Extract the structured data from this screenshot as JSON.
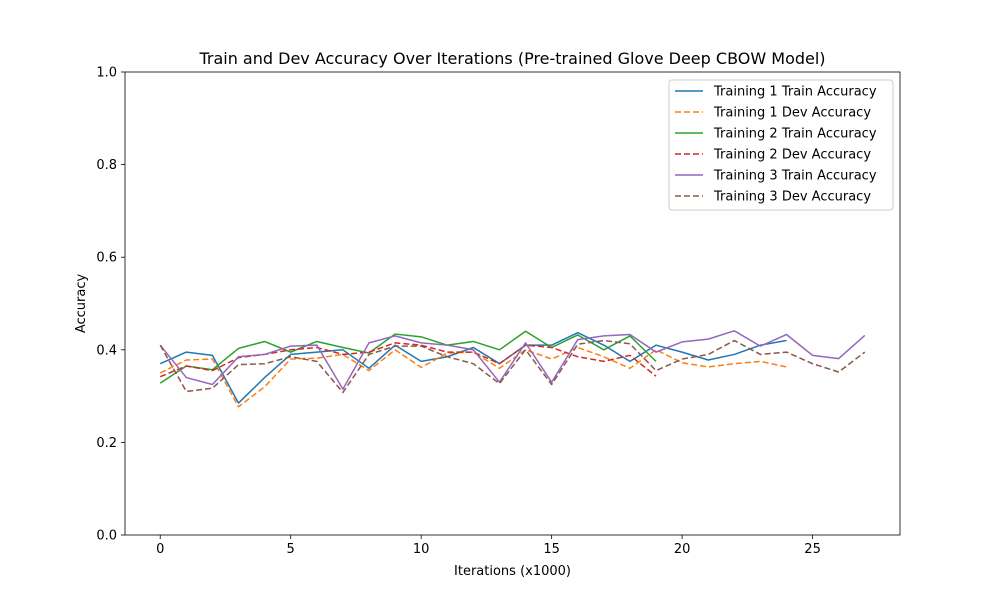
{
  "chart_data": {
    "type": "line",
    "title": "Train and Dev Accuracy Over Iterations (Pre-trained Glove Deep CBOW Model)",
    "xlabel": "Iterations (x1000)",
    "ylabel": "Accuracy",
    "xlim": [
      -1.35,
      28.35
    ],
    "ylim": [
      0.0,
      1.0
    ],
    "xticks": [
      0,
      5,
      10,
      15,
      20,
      25
    ],
    "yticks": [
      0.0,
      0.2,
      0.4,
      0.6,
      0.8,
      1.0
    ],
    "xtick_labels": [
      "0",
      "5",
      "10",
      "15",
      "20",
      "25"
    ],
    "ytick_labels": [
      "0.0",
      "0.2",
      "0.4",
      "0.6",
      "0.8",
      "1.0"
    ],
    "grid": false,
    "legend_position": "top-right",
    "series": [
      {
        "name": "Training 1 Train Accuracy",
        "color": "#1f77b4",
        "style": "solid",
        "x": [
          0,
          1,
          2,
          3,
          4,
          5,
          6,
          7,
          8,
          9,
          10,
          11,
          12,
          13,
          14,
          15,
          16,
          17,
          18,
          19,
          20,
          21,
          22,
          23,
          24
        ],
        "y": [
          0.37,
          0.395,
          0.388,
          0.285,
          0.34,
          0.39,
          0.395,
          0.4,
          0.36,
          0.41,
          0.375,
          0.385,
          0.405,
          0.37,
          0.41,
          0.41,
          0.437,
          0.41,
          0.375,
          0.41,
          0.395,
          0.378,
          0.39,
          0.41,
          0.42
        ]
      },
      {
        "name": "Training 1 Dev Accuracy",
        "color": "#ff7f0e",
        "style": "dashed",
        "x": [
          0,
          1,
          2,
          3,
          4,
          5,
          6,
          7,
          8,
          9,
          10,
          11,
          12,
          13,
          14,
          15,
          16,
          17,
          18,
          19,
          20,
          21,
          22,
          23,
          24
        ],
        "y": [
          0.35,
          0.378,
          0.38,
          0.277,
          0.32,
          0.38,
          0.382,
          0.39,
          0.355,
          0.4,
          0.362,
          0.393,
          0.395,
          0.36,
          0.4,
          0.38,
          0.405,
          0.385,
          0.36,
          0.4,
          0.372,
          0.363,
          0.37,
          0.375,
          0.363
        ]
      },
      {
        "name": "Training 2 Train Accuracy",
        "color": "#2ca02c",
        "style": "solid",
        "x": [
          0,
          1,
          2,
          3,
          4,
          5,
          6,
          7,
          8,
          9,
          10,
          11,
          12,
          13,
          14,
          15,
          16,
          17,
          18,
          19
        ],
        "y": [
          0.328,
          0.365,
          0.357,
          0.403,
          0.418,
          0.395,
          0.418,
          0.405,
          0.393,
          0.434,
          0.428,
          0.41,
          0.418,
          0.4,
          0.44,
          0.405,
          0.432,
          0.4,
          0.43,
          0.375
        ]
      },
      {
        "name": "Training 2 Dev Accuracy",
        "color": "#d62728",
        "style": "dashed",
        "x": [
          0,
          1,
          2,
          3,
          4,
          5,
          6,
          7,
          8,
          9,
          10,
          11,
          12,
          13,
          14,
          15,
          16,
          17,
          18,
          19
        ],
        "y": [
          0.342,
          0.365,
          0.355,
          0.383,
          0.39,
          0.4,
          0.405,
          0.39,
          0.395,
          0.415,
          0.41,
          0.395,
          0.395,
          0.37,
          0.41,
          0.405,
          0.385,
          0.375,
          0.388,
          0.343
        ]
      },
      {
        "name": "Training 3 Train Accuracy",
        "color": "#9467bd",
        "style": "solid",
        "x": [
          0,
          1,
          2,
          3,
          4,
          5,
          6,
          7,
          8,
          9,
          10,
          11,
          12,
          13,
          14,
          15,
          16,
          17,
          18,
          19,
          20,
          21,
          22,
          23,
          24,
          25,
          26,
          27
        ],
        "y": [
          0.41,
          0.34,
          0.325,
          0.385,
          0.39,
          0.408,
          0.41,
          0.315,
          0.415,
          0.43,
          0.415,
          0.41,
          0.4,
          0.33,
          0.415,
          0.33,
          0.422,
          0.43,
          0.433,
          0.395,
          0.417,
          0.423,
          0.441,
          0.408,
          0.433,
          0.388,
          0.381,
          0.431
        ]
      },
      {
        "name": "Training 3 Dev Accuracy",
        "color": "#8c564b",
        "style": "dashed",
        "x": [
          0,
          1,
          2,
          3,
          4,
          5,
          6,
          7,
          8,
          9,
          10,
          11,
          12,
          13,
          14,
          15,
          16,
          17,
          18,
          19,
          20,
          21,
          22,
          23,
          24,
          25,
          26,
          27
        ],
        "y": [
          0.41,
          0.31,
          0.317,
          0.368,
          0.37,
          0.385,
          0.375,
          0.308,
          0.39,
          0.408,
          0.408,
          0.385,
          0.37,
          0.327,
          0.4,
          0.325,
          0.412,
          0.42,
          0.413,
          0.355,
          0.38,
          0.39,
          0.42,
          0.39,
          0.395,
          0.37,
          0.352,
          0.395
        ]
      }
    ]
  }
}
